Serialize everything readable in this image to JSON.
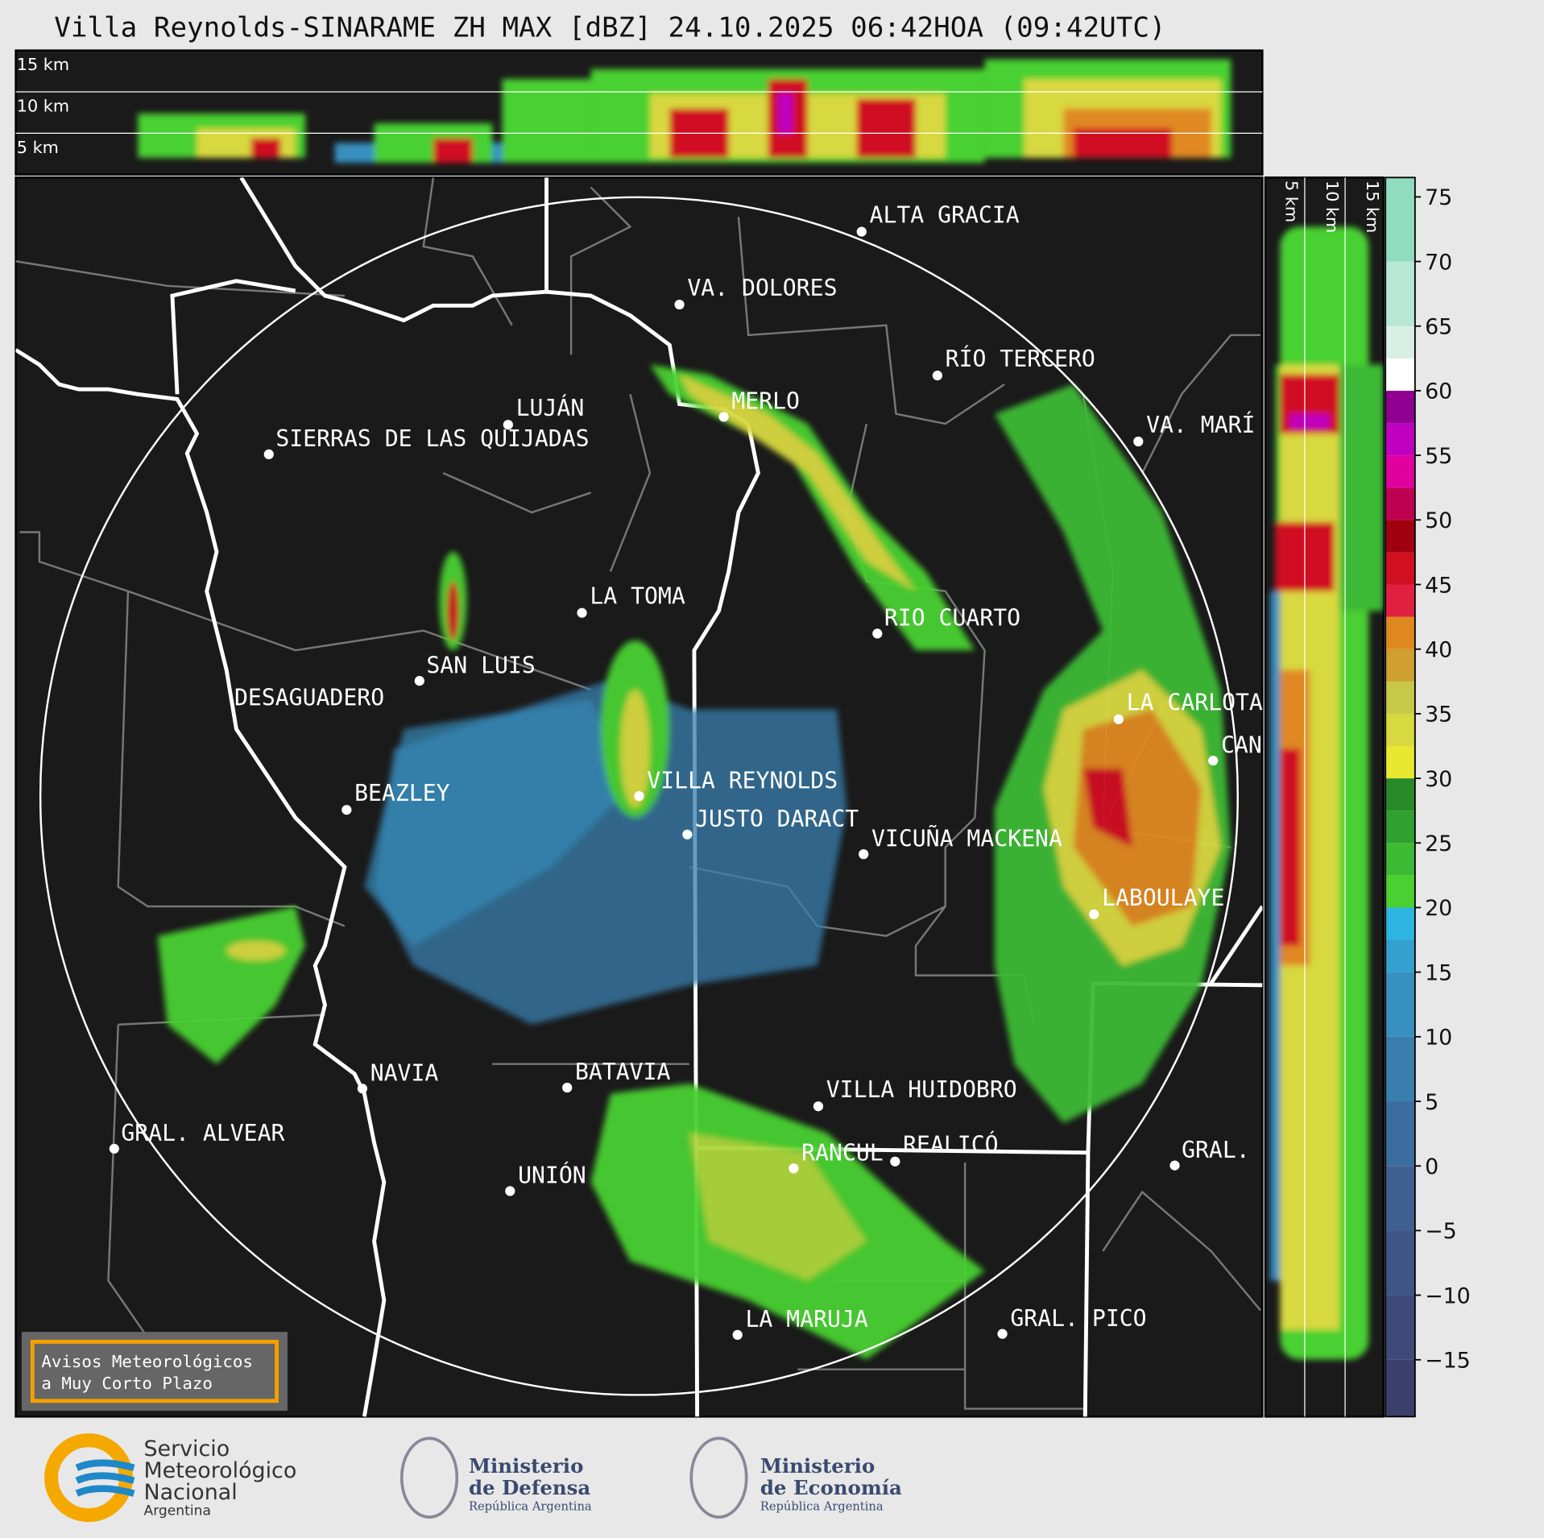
{
  "header": {
    "title": "Villa Reynolds-SINARAME ZH MAX [dBZ] 24.10.2025 06:42HOA (09:42UTC)"
  },
  "top_panel": {
    "height_labels": [
      "15 km",
      "10 km",
      "5 km"
    ]
  },
  "side_panel": {
    "height_labels": [
      "5 km",
      "10 km",
      "15 km"
    ]
  },
  "map": {
    "cities": [
      "ALTA GRACIA",
      "VA. DOLORES",
      "RÍO TERCERO",
      "LUJÁN",
      "MERLO",
      "VA. MARÍ",
      "SIERRAS DE LAS QUIJADAS",
      "LA TOMA",
      "RIO CUARTO",
      "SAN LUIS",
      "DESAGUADERO",
      "LA CARLOTA",
      "CAN",
      "VILLA REYNOLDS",
      "BEAZLEY",
      "JUSTO DARACT",
      "VICUÑA MACKENA",
      "LABOULAYE",
      "NAVIA",
      "BATAVIA",
      "VILLA HUIDOBRO",
      "GRAL. ALVEAR",
      "RANCUL",
      "REALICÓ",
      "GRAL.",
      "UNIÓN",
      "LA MARUJA",
      "GRAL. PICO"
    ],
    "notice": [
      "Avisos Meteorológicos",
      "a Muy Corto Plazo"
    ]
  },
  "colorbar": {
    "lim": [
      -19.4,
      76.5
    ],
    "ticks": [
      75,
      70,
      65,
      60,
      55,
      50,
      45,
      40,
      35,
      30,
      25,
      20,
      15,
      10,
      5,
      0,
      {
        "value": -5,
        "label": "−5"
      },
      {
        "value": -10,
        "label": "−10"
      },
      {
        "value": -15,
        "label": "−15"
      }
    ],
    "bands": [
      [
        -20,
        "#3b3f6b"
      ],
      [
        -15,
        "#3e4a7a"
      ],
      [
        -10,
        "#3f5586"
      ],
      [
        -5,
        "#3f6090"
      ],
      [
        0,
        "#3b6e9e"
      ],
      [
        5,
        "#3a7eae"
      ],
      [
        10,
        "#3890c0"
      ],
      [
        15,
        "#34a0d0"
      ],
      [
        17.5,
        "#2db4e0"
      ],
      [
        20,
        "#4ad030"
      ],
      [
        22.5,
        "#3cba34"
      ],
      [
        25,
        "#30a030"
      ],
      [
        27.5,
        "#288a28"
      ],
      [
        30,
        "#e8e830"
      ],
      [
        32.5,
        "#d8d840"
      ],
      [
        35,
        "#c8c848"
      ],
      [
        37.5,
        "#d0a030"
      ],
      [
        40,
        "#e08820"
      ],
      [
        42.5,
        "#e02040"
      ],
      [
        45,
        "#d01020"
      ],
      [
        47.5,
        "#a00010"
      ],
      [
        50,
        "#c00050"
      ],
      [
        52.5,
        "#e000a0"
      ],
      [
        55,
        "#c000c0"
      ],
      [
        57.5,
        "#900090"
      ],
      [
        60,
        "#ffffff"
      ],
      [
        62.5,
        "#d8f0e4"
      ],
      [
        65,
        "#b8e8d4"
      ],
      [
        70,
        "#90dcc0"
      ],
      [
        77,
        "#90dcc0"
      ]
    ]
  },
  "footer": {
    "smn": [
      "Servicio",
      "Meteorológico",
      "Nacional",
      "Argentina"
    ],
    "defensa": [
      "Ministerio",
      "de Defensa",
      "República Argentina"
    ],
    "economia": [
      "Ministerio",
      "de Economía",
      "República Argentina"
    ]
  }
}
